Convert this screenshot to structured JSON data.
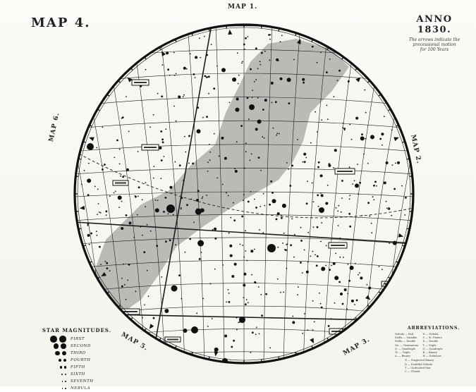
{
  "map": {
    "title": "MAP 4.",
    "epoch": "ANNO 1830.",
    "note_lines": [
      "The arrows indicate the",
      "precessional motion",
      "for 100 Years"
    ],
    "edge_labels": {
      "top": "MAP 1.",
      "left": "MAP 6.",
      "right": "MAP 2.",
      "bottom_left": "MAP 5.",
      "bottom_right": "MAP 3."
    },
    "colors": {
      "ink": "#1c1c1c",
      "paper": "#f7f7f2",
      "milky_way": "#9a9a96",
      "border": "#111111"
    }
  },
  "legend_magnitudes": {
    "heading": "STAR MAGNITUDES.",
    "items": [
      {
        "label": "FIRST",
        "size": 7
      },
      {
        "label": "SECOND",
        "size": 5.5
      },
      {
        "label": "THIRD",
        "size": 4.5
      },
      {
        "label": "FOURTH",
        "size": 3
      },
      {
        "label": "FIFTH",
        "size": 2.2
      },
      {
        "label": "SIXTH",
        "size": 1.6
      },
      {
        "label": "SEVENTH",
        "size": 1.2
      },
      {
        "label": "NEBULA",
        "size": 1.2
      }
    ]
  },
  "legend_abbreviations": {
    "heading": "ABBREVIATIONS.",
    "left_col": [
      "Nebula — Red",
      "Stella — Variable",
      "Stella — Double",
      "Ge. — Geminorum",
      "Q. — Quadruple",
      "Tr. — Triple",
      "A. — Binary"
    ],
    "right_col": [
      "N — Nebula",
      "S — St. Pieters",
      "D — Double",
      "T — Triple",
      "Q — Quadruple",
      "B — Binary",
      "N — Nebulous"
    ],
    "footer": [
      "N — Suspected Binary",
      "D — Doubtful Nebula",
      "T — Undecided Star",
      "C — Cluster"
    ]
  }
}
